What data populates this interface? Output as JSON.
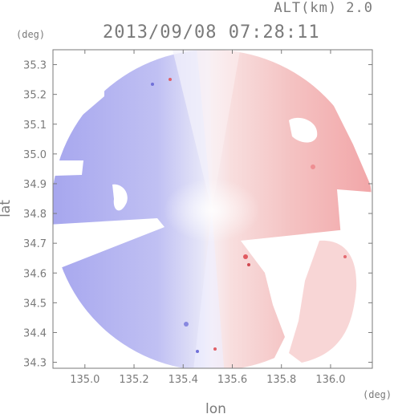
{
  "header": {
    "altitude_label": "ALT(km) 2.0",
    "timestamp": "2013/09/08 07:28:11"
  },
  "chart_data": {
    "type": "heatmap",
    "title": "2013/09/08 07:28:11",
    "altitude": "ALT(km) 2.0",
    "xlabel": "lon",
    "ylabel": "lat",
    "x_unit": "(deg)",
    "y_unit": "(deg)",
    "xlim": [
      134.87,
      136.17
    ],
    "ylim": [
      34.28,
      35.35
    ],
    "x_ticks": [
      {
        "value": 135.0,
        "label": "135.0"
      },
      {
        "value": 135.2,
        "label": "135.2"
      },
      {
        "value": 135.4,
        "label": "135.4"
      },
      {
        "value": 135.6,
        "label": "135.6"
      },
      {
        "value": 135.8,
        "label": "135.8"
      },
      {
        "value": 136.0,
        "label": "136.0"
      }
    ],
    "y_ticks": [
      {
        "value": 34.3,
        "label": "34.3"
      },
      {
        "value": 34.4,
        "label": "34.4"
      },
      {
        "value": 34.5,
        "label": "34.5"
      },
      {
        "value": 34.6,
        "label": "34.6"
      },
      {
        "value": 34.7,
        "label": "34.7"
      },
      {
        "value": 34.8,
        "label": "34.8"
      },
      {
        "value": 34.9,
        "label": "34.9"
      },
      {
        "value": 35.0,
        "label": "35.0"
      },
      {
        "value": 35.1,
        "label": "35.1"
      },
      {
        "value": 35.2,
        "label": "35.2"
      },
      {
        "value": 35.3,
        "label": "35.3"
      }
    ],
    "radar_center": {
      "lon": 135.53,
      "lat": 34.81
    },
    "colors": {
      "approaching": "#a9a9f0",
      "receding": "#f4a0a0",
      "neutral": "#f4f4fb",
      "axes": "#7a7a7a"
    }
  }
}
